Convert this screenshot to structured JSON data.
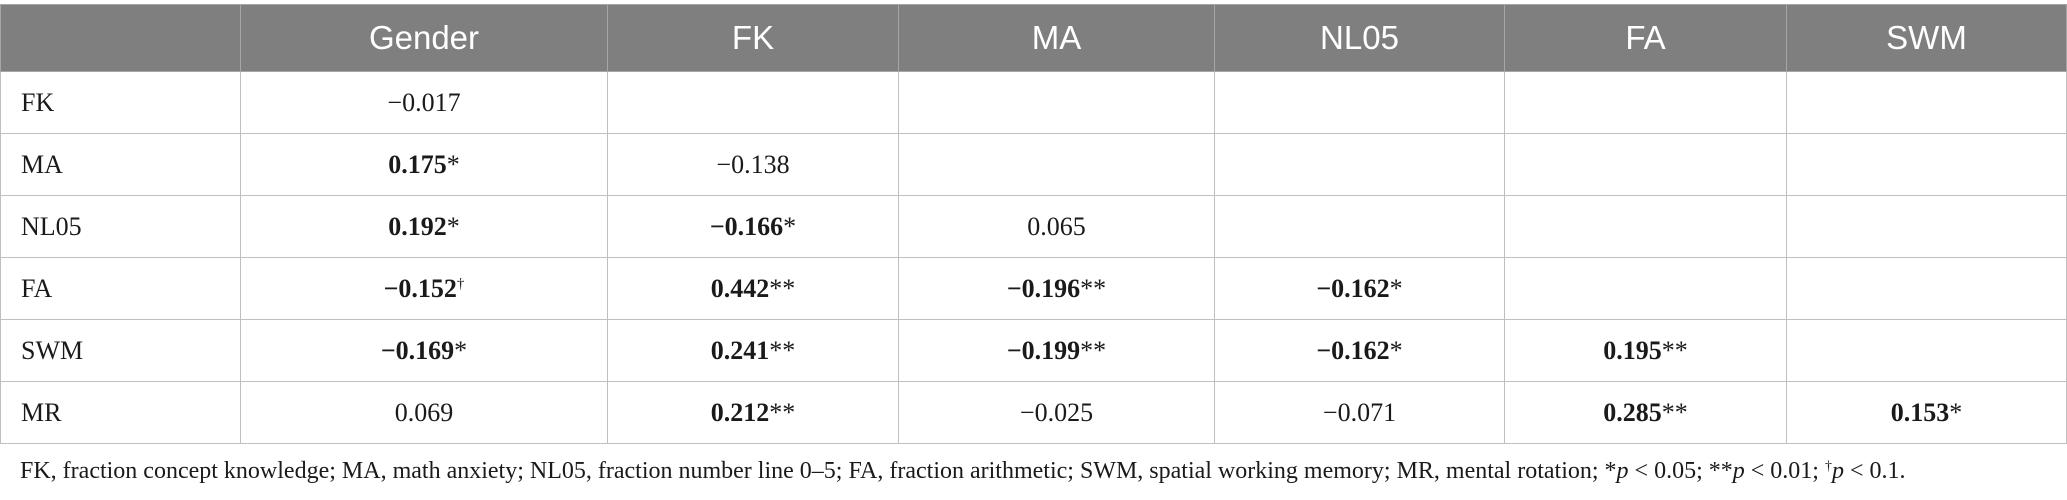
{
  "table": {
    "columns": [
      "",
      "Gender",
      "FK",
      "MA",
      "NL05",
      "FA",
      "SWM"
    ],
    "rows": [
      {
        "label": "FK",
        "cells": [
          {
            "value": "−0.017",
            "bold": false,
            "sig": ""
          },
          null,
          null,
          null,
          null,
          null
        ]
      },
      {
        "label": "MA",
        "cells": [
          {
            "value": "0.175",
            "bold": true,
            "sig": "*"
          },
          {
            "value": "−0.138",
            "bold": false,
            "sig": ""
          },
          null,
          null,
          null,
          null
        ]
      },
      {
        "label": "NL05",
        "cells": [
          {
            "value": "0.192",
            "bold": true,
            "sig": "*"
          },
          {
            "value": "−0.166",
            "bold": true,
            "sig": "*"
          },
          {
            "value": "0.065",
            "bold": false,
            "sig": ""
          },
          null,
          null,
          null
        ]
      },
      {
        "label": "FA",
        "cells": [
          {
            "value": "−0.152",
            "bold": true,
            "sig": "†"
          },
          {
            "value": "0.442",
            "bold": true,
            "sig": "**"
          },
          {
            "value": "−0.196",
            "bold": true,
            "sig": "**"
          },
          {
            "value": "−0.162",
            "bold": true,
            "sig": "*"
          },
          null,
          null
        ]
      },
      {
        "label": "SWM",
        "cells": [
          {
            "value": "−0.169",
            "bold": true,
            "sig": "*"
          },
          {
            "value": "0.241",
            "bold": true,
            "sig": "**"
          },
          {
            "value": "−0.199",
            "bold": true,
            "sig": "**"
          },
          {
            "value": "−0.162",
            "bold": true,
            "sig": "*"
          },
          {
            "value": "0.195",
            "bold": true,
            "sig": "**"
          },
          null
        ]
      },
      {
        "label": "MR",
        "cells": [
          {
            "value": "0.069",
            "bold": false,
            "sig": ""
          },
          {
            "value": "0.212",
            "bold": true,
            "sig": "**"
          },
          {
            "value": "−0.025",
            "bold": false,
            "sig": ""
          },
          {
            "value": "−0.071",
            "bold": false,
            "sig": ""
          },
          {
            "value": "0.285",
            "bold": true,
            "sig": "**"
          },
          {
            "value": "0.153",
            "bold": true,
            "sig": "*"
          }
        ]
      }
    ]
  },
  "note": {
    "abbreviations": "FK, fraction concept knowledge; MA, math anxiety; NL05, fraction number line 0–5; FA, fraction arithmetic; SWM, spatial working memory; MR, mental rotation; ",
    "sig1_prefix": "*",
    "p1": "p",
    "sig1_rest": " < 0.05; **",
    "p2": "p",
    "sig2_rest": " < 0.01; ",
    "dagger": "†",
    "p3": "p",
    "sig3_rest": " < 0.1."
  },
  "colors": {
    "header_bg": "#7f7f7f",
    "header_text": "#ffffff",
    "grid": "#bfbfbf",
    "text": "#1a1a1a"
  }
}
